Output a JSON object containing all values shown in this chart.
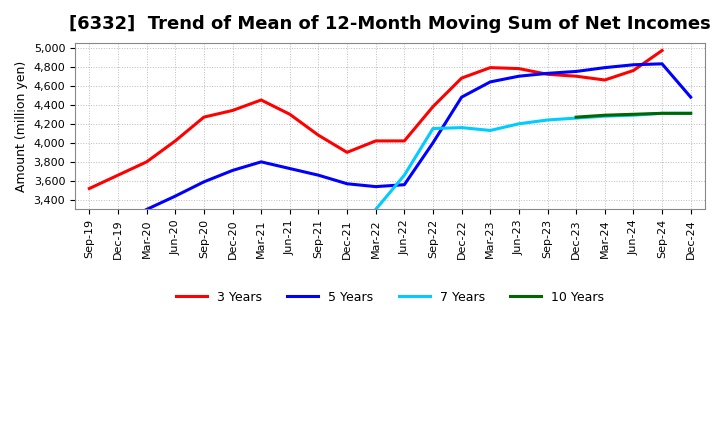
{
  "title": "[6332]  Trend of Mean of 12-Month Moving Sum of Net Incomes",
  "ylabel": "Amount (million yen)",
  "x_labels": [
    "Sep-19",
    "Dec-19",
    "Mar-20",
    "Jun-20",
    "Sep-20",
    "Dec-20",
    "Mar-21",
    "Jun-21",
    "Sep-21",
    "Dec-21",
    "Mar-22",
    "Jun-22",
    "Sep-22",
    "Dec-22",
    "Mar-23",
    "Jun-23",
    "Sep-23",
    "Dec-23",
    "Mar-24",
    "Jun-24",
    "Sep-24",
    "Dec-24"
  ],
  "ylim": [
    3300,
    5050
  ],
  "yticks": [
    3400,
    3600,
    3800,
    4000,
    4200,
    4400,
    4600,
    4800,
    5000
  ],
  "series": {
    "3 Years": {
      "color": "#ff0000",
      "data_x": [
        0,
        2,
        3,
        4,
        5,
        6,
        7,
        8,
        9,
        10,
        11,
        12,
        13,
        14,
        15,
        16,
        17,
        18,
        19,
        20
      ],
      "data_y": [
        3520,
        3800,
        4020,
        4270,
        4340,
        4450,
        4300,
        4080,
        3900,
        4020,
        4020,
        4380,
        4680,
        4790,
        4780,
        4720,
        4700,
        4660,
        4760,
        4970
      ]
    },
    "5 Years": {
      "color": "#0000ff",
      "data_x": [
        2,
        3,
        4,
        5,
        6,
        7,
        8,
        9,
        10,
        11,
        12,
        13,
        14,
        15,
        16,
        17,
        18,
        19,
        20,
        21
      ],
      "data_y": [
        3300,
        3440,
        3590,
        3710,
        3800,
        3730,
        3660,
        3570,
        3540,
        3560,
        4000,
        4480,
        4640,
        4700,
        4730,
        4750,
        4790,
        4820,
        4830,
        4480
      ]
    },
    "7 Years": {
      "color": "#00ccff",
      "data_x": [
        10,
        11,
        12,
        13,
        14,
        15,
        16,
        17,
        18,
        19,
        20,
        21
      ],
      "data_y": [
        3300,
        3660,
        4150,
        4160,
        4130,
        4200,
        4240,
        4260,
        4280,
        4290,
        4310,
        4310
      ]
    },
    "10 Years": {
      "color": "#006600",
      "data_x": [
        17,
        18,
        19,
        20,
        21
      ],
      "data_y": [
        4270,
        4290,
        4300,
        4310,
        4310
      ]
    }
  },
  "background_color": "#ffffff",
  "grid_color": "#bbbbbb",
  "title_fontsize": 13
}
